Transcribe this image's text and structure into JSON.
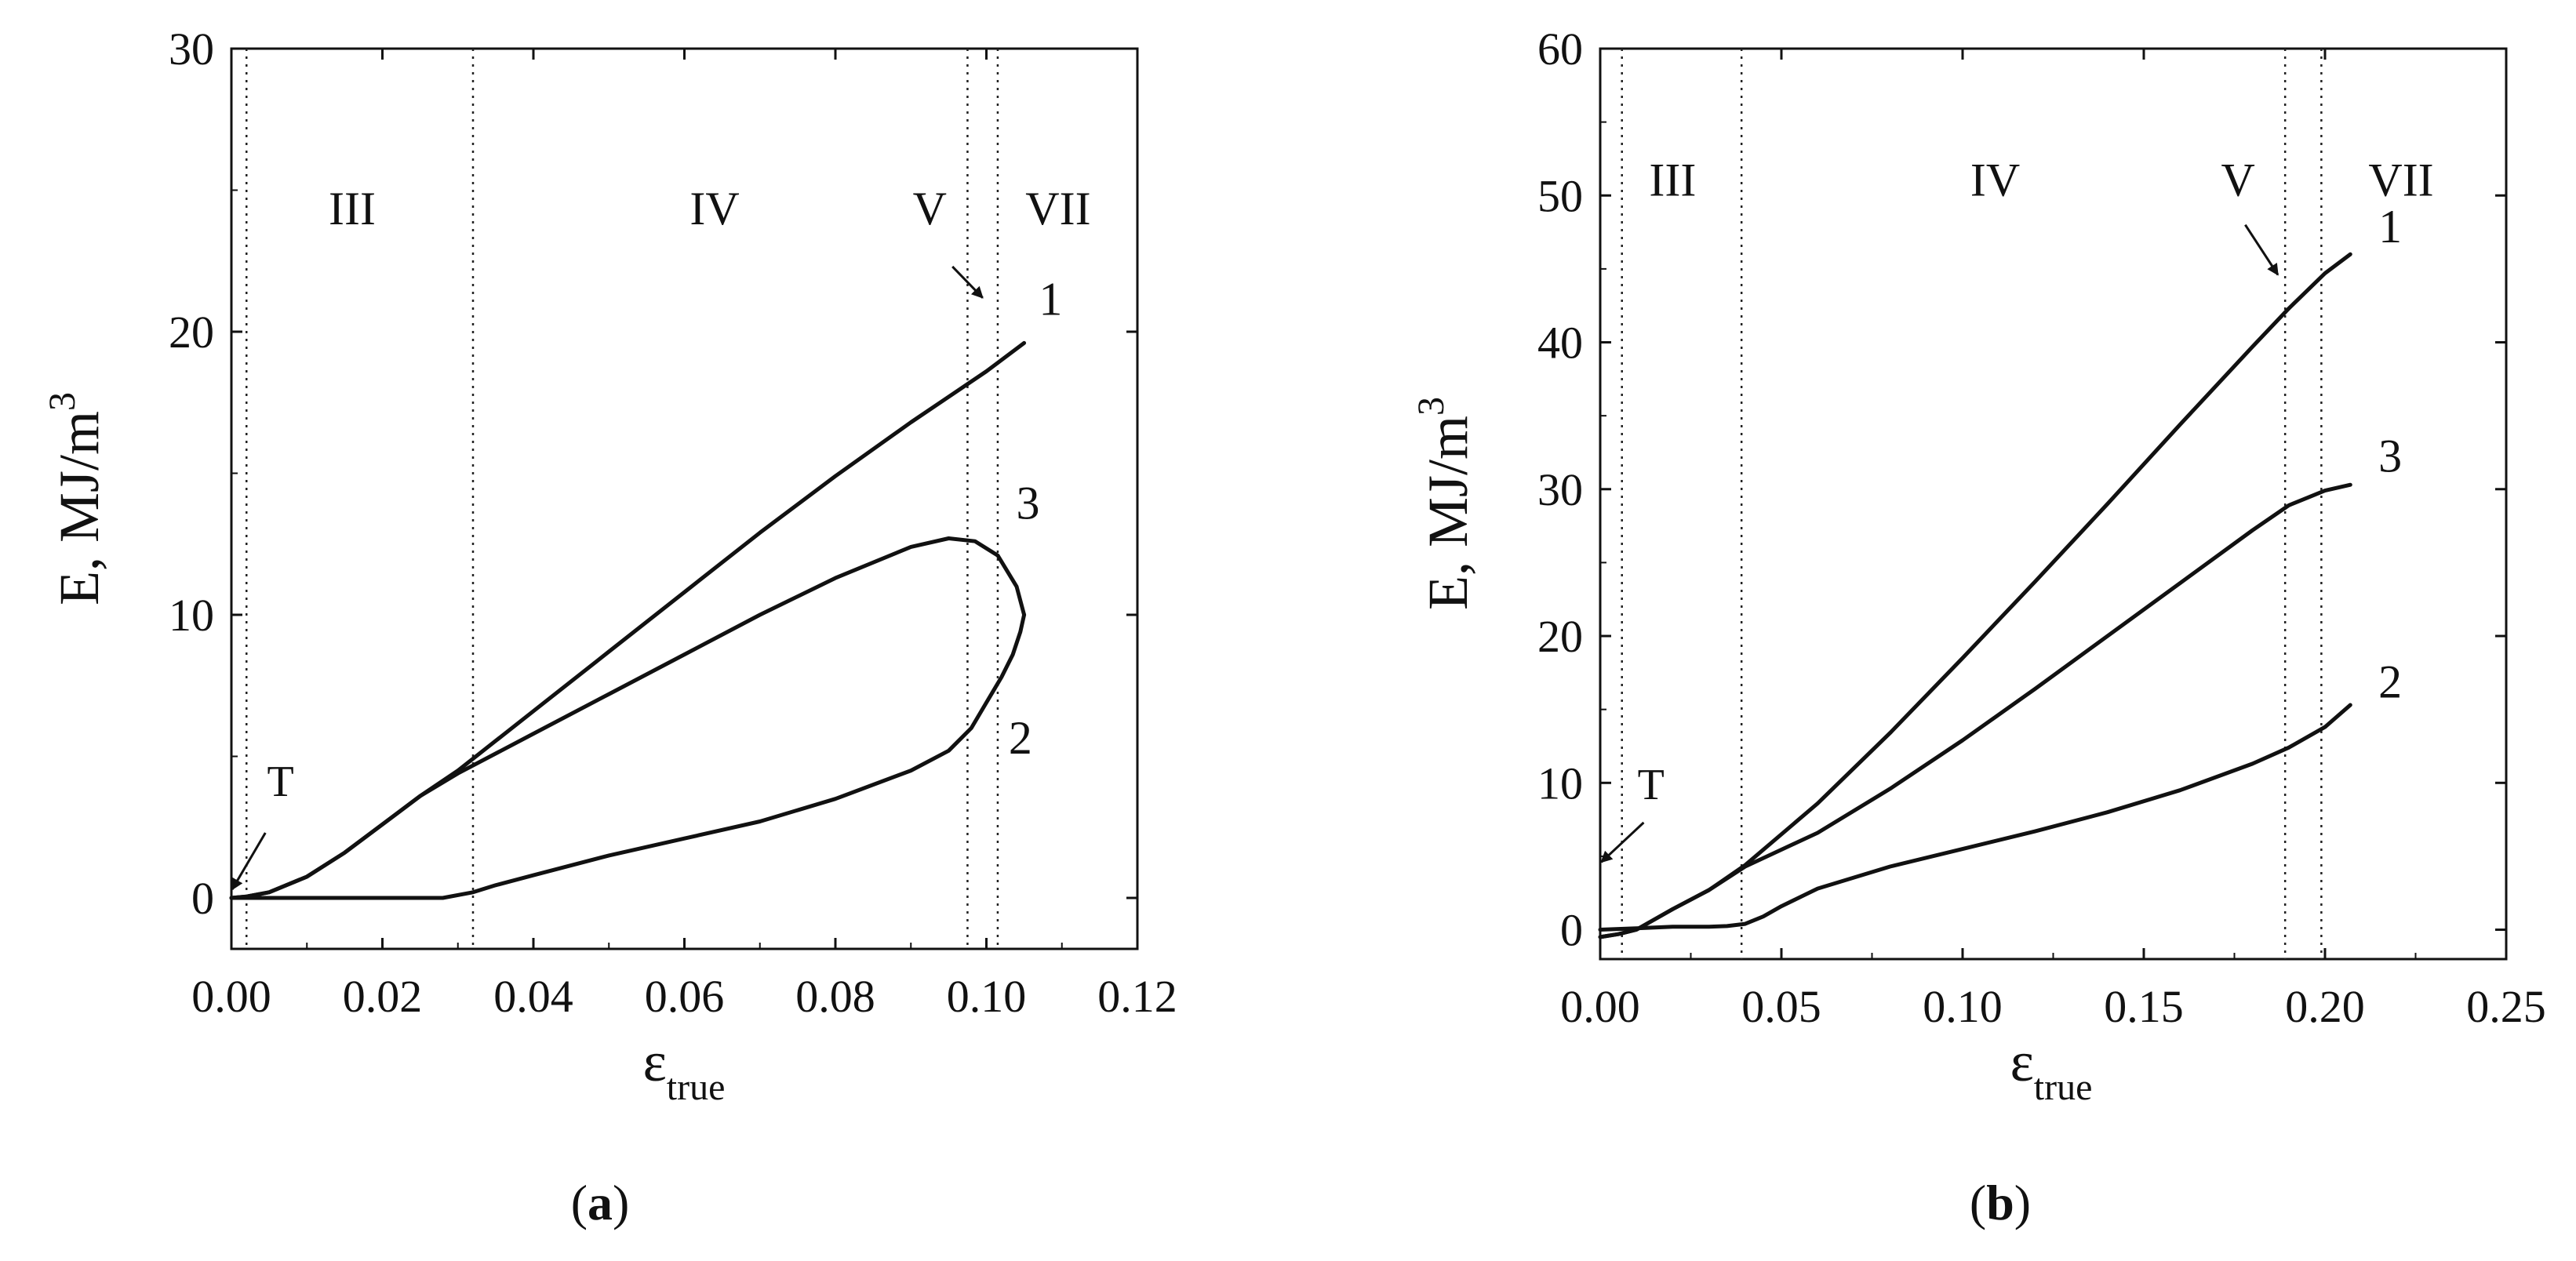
{
  "chart_data": [
    {
      "type": "line",
      "panel_label": "a",
      "xlabel": "ε",
      "xlabel_sub": "true",
      "ylabel": "E, MJ/m",
      "ylabel_sup": "3",
      "xlim": [
        0.0,
        0.12
      ],
      "ylim": [
        -1.8,
        30
      ],
      "xticks": [
        "0.00",
        "0.02",
        "0.04",
        "0.06",
        "0.08",
        "0.10",
        "0.12"
      ],
      "xtick_values": [
        0.0,
        0.02,
        0.04,
        0.06,
        0.08,
        0.1,
        0.12
      ],
      "yticks": [
        "0",
        "10",
        "20",
        "30"
      ],
      "ytick_values": [
        0,
        10,
        20,
        30
      ],
      "stage_lines": [
        0.002,
        0.032,
        0.0975,
        0.1015
      ],
      "stage_labels": [
        {
          "text": "III",
          "x": 0.016,
          "y": 23.8
        },
        {
          "text": "IV",
          "x": 0.064,
          "y": 23.8
        },
        {
          "text": "V",
          "x": 0.0925,
          "y": 23.8
        },
        {
          "text": "VII",
          "x": 0.1095,
          "y": 23.8
        }
      ],
      "annotations": [
        {
          "text": "T",
          "x": 0.0065,
          "y": 3.6,
          "arrow_from": [
            0.0045,
            2.3
          ],
          "arrow_to": [
            0.0001,
            0.3
          ]
        },
        {
          "text": "",
          "arrow_from": [
            0.0955,
            22.3
          ],
          "arrow_to": [
            0.0995,
            21.2
          ]
        }
      ],
      "series": [
        {
          "name": "1",
          "label_pos": [
            0.1085,
            20.6
          ],
          "x": [
            0.0,
            0.002,
            0.005,
            0.01,
            0.015,
            0.02,
            0.025,
            0.03,
            0.04,
            0.05,
            0.06,
            0.07,
            0.08,
            0.09,
            0.1,
            0.105
          ],
          "y": [
            0.0,
            0.05,
            0.2,
            0.75,
            1.6,
            2.6,
            3.6,
            4.5,
            6.6,
            8.7,
            10.8,
            12.9,
            14.9,
            16.8,
            18.6,
            19.6
          ]
        },
        {
          "name": "3",
          "label_pos": [
            0.1055,
            13.4
          ],
          "x": [
            0.0,
            0.002,
            0.005,
            0.01,
            0.015,
            0.02,
            0.025,
            0.03,
            0.04,
            0.05,
            0.06,
            0.07,
            0.08,
            0.09,
            0.095,
            0.0985,
            0.1015,
            0.104,
            0.105
          ],
          "y": [
            0.0,
            0.05,
            0.2,
            0.75,
            1.6,
            2.6,
            3.6,
            4.4,
            5.8,
            7.2,
            8.6,
            10.0,
            11.3,
            12.4,
            12.7,
            12.6,
            12.1,
            11.0,
            10.0
          ]
        },
        {
          "name": "2",
          "label_pos": [
            0.1045,
            5.1
          ],
          "x": [
            0.0,
            0.01,
            0.02,
            0.028,
            0.032,
            0.035,
            0.04,
            0.05,
            0.06,
            0.07,
            0.08,
            0.09,
            0.095,
            0.098,
            0.1,
            0.102,
            0.1035,
            0.1045,
            0.105
          ],
          "y": [
            0.0,
            0.0,
            0.0,
            0.0,
            0.2,
            0.45,
            0.8,
            1.5,
            2.1,
            2.7,
            3.5,
            4.5,
            5.2,
            6.0,
            6.9,
            7.8,
            8.6,
            9.4,
            10.0
          ]
        }
      ]
    },
    {
      "type": "line",
      "panel_label": "b",
      "xlabel": "ε",
      "xlabel_sub": "true",
      "ylabel": "E, MJ/m",
      "ylabel_sup": "3",
      "xlim": [
        0.0,
        0.25
      ],
      "ylim": [
        -2,
        60
      ],
      "xticks": [
        "0.00",
        "0.05",
        "0.10",
        "0.15",
        "0.20",
        "0.25"
      ],
      "xtick_values": [
        0.0,
        0.05,
        0.1,
        0.15,
        0.2,
        0.25
      ],
      "yticks": [
        "0",
        "10",
        "20",
        "30",
        "40",
        "50",
        "60"
      ],
      "ytick_values": [
        0,
        10,
        20,
        30,
        40,
        50,
        60
      ],
      "stage_lines": [
        0.006,
        0.039,
        0.189,
        0.199
      ],
      "stage_labels": [
        {
          "text": "III",
          "x": 0.02,
          "y": 50.0
        },
        {
          "text": "IV",
          "x": 0.109,
          "y": 50.0
        },
        {
          "text": "V",
          "x": 0.176,
          "y": 50.0
        },
        {
          "text": "VII",
          "x": 0.221,
          "y": 50.0
        }
      ],
      "annotations": [
        {
          "text": "T",
          "x": 0.014,
          "y": 8.9,
          "arrow_from": [
            0.012,
            7.3
          ],
          "arrow_to": [
            0.0003,
            4.6
          ]
        },
        {
          "text": "",
          "arrow_from": [
            0.178,
            48.0
          ],
          "arrow_to": [
            0.187,
            44.6
          ]
        }
      ],
      "series": [
        {
          "name": "1",
          "label_pos": [
            0.218,
            46.8
          ],
          "x": [
            0.0,
            0.005,
            0.01,
            0.02,
            0.03,
            0.04,
            0.06,
            0.08,
            0.1,
            0.12,
            0.14,
            0.16,
            0.18,
            0.19,
            0.2,
            0.207
          ],
          "y": [
            -0.5,
            -0.3,
            0.0,
            1.4,
            2.7,
            4.4,
            8.6,
            13.4,
            18.5,
            23.7,
            29.0,
            34.4,
            39.7,
            42.3,
            44.7,
            46.0
          ]
        },
        {
          "name": "3",
          "label_pos": [
            0.218,
            31.2
          ],
          "x": [
            0.0,
            0.005,
            0.01,
            0.02,
            0.03,
            0.04,
            0.06,
            0.08,
            0.1,
            0.12,
            0.14,
            0.16,
            0.18,
            0.19,
            0.2,
            0.207
          ],
          "y": [
            -0.5,
            -0.3,
            0.0,
            1.4,
            2.7,
            4.3,
            6.6,
            9.6,
            12.9,
            16.4,
            20.0,
            23.6,
            27.2,
            28.9,
            29.9,
            30.3
          ]
        },
        {
          "name": "2",
          "label_pos": [
            0.218,
            15.8
          ],
          "x": [
            0.0,
            0.01,
            0.02,
            0.03,
            0.035,
            0.04,
            0.045,
            0.05,
            0.06,
            0.08,
            0.1,
            0.12,
            0.14,
            0.16,
            0.18,
            0.19,
            0.2,
            0.207
          ],
          "y": [
            0.0,
            0.1,
            0.2,
            0.2,
            0.25,
            0.4,
            0.9,
            1.6,
            2.8,
            4.3,
            5.5,
            6.7,
            8.0,
            9.5,
            11.3,
            12.4,
            13.8,
            15.3
          ]
        }
      ]
    }
  ]
}
